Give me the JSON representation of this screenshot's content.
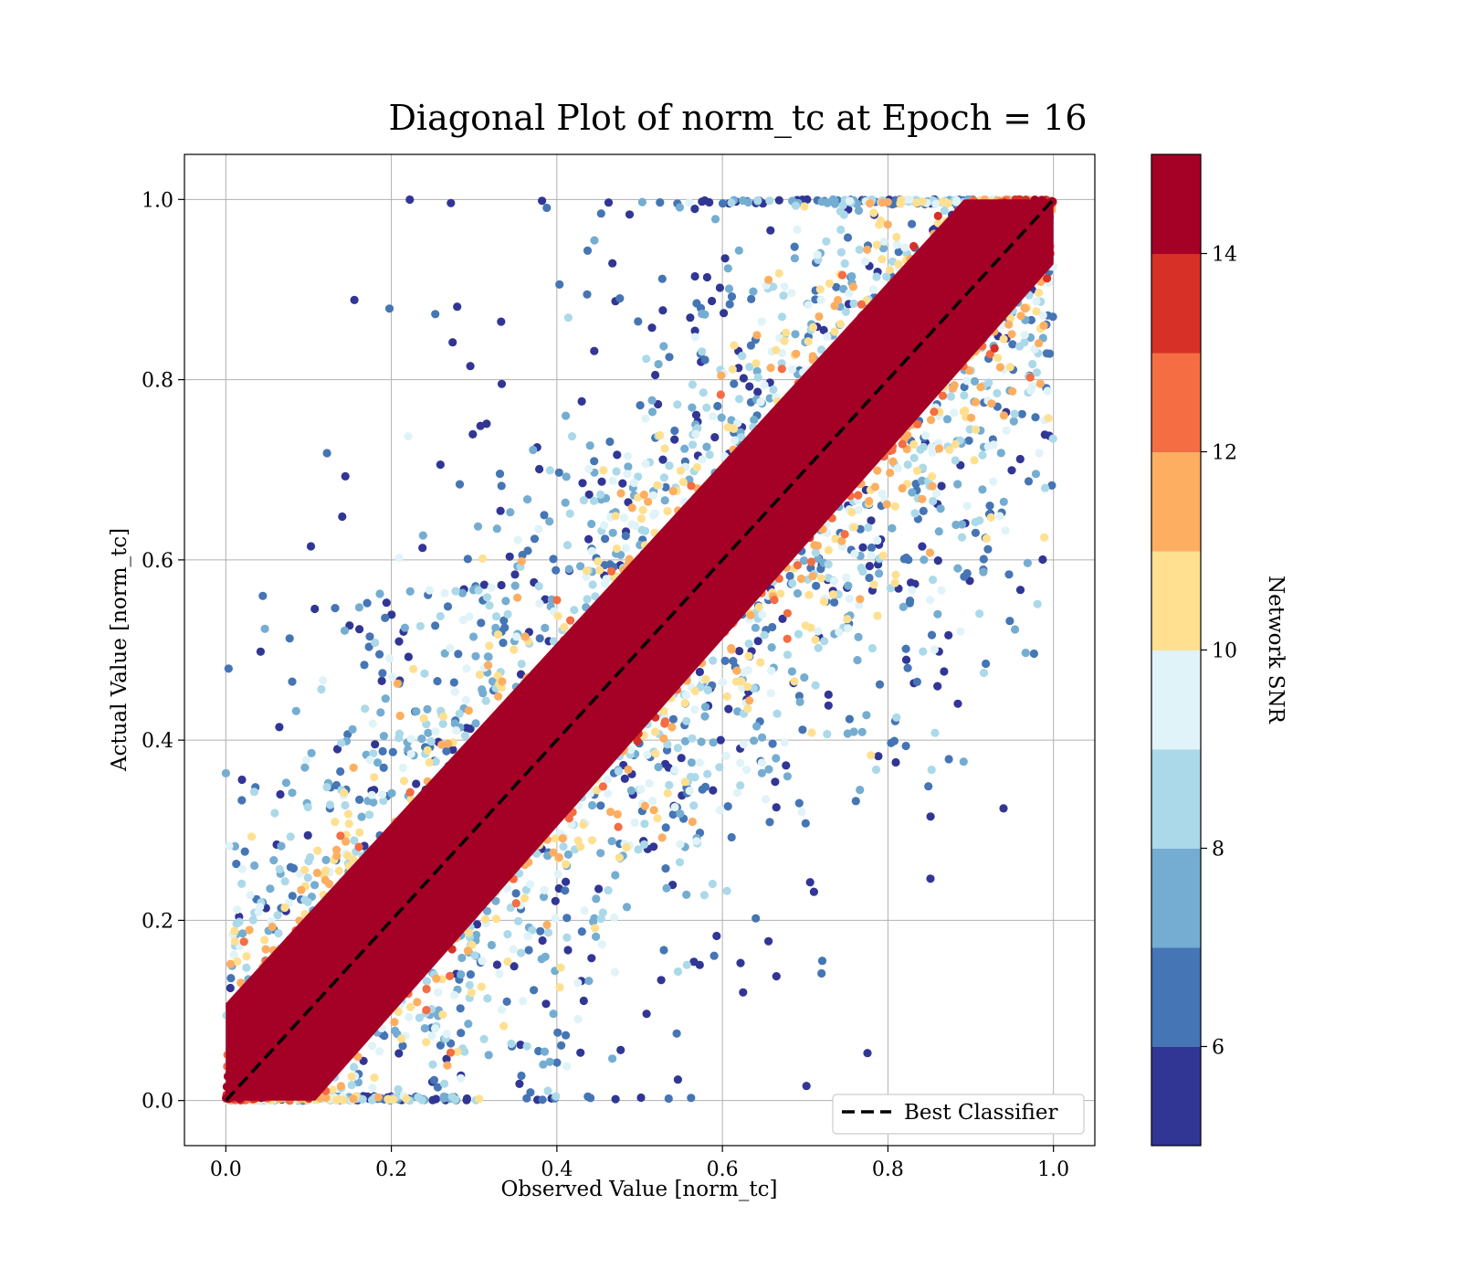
{
  "chart_data": {
    "type": "scatter",
    "title": "Diagonal Plot of norm_tc at Epoch = 16",
    "xlabel": "Observed Value [norm_tc]",
    "ylabel": "Actual Value [norm_tc]",
    "xlim": [
      -0.05,
      1.05
    ],
    "ylim": [
      -0.05,
      1.05
    ],
    "xticks": [
      "0.0",
      "0.2",
      "0.4",
      "0.6",
      "0.8",
      "1.0"
    ],
    "yticks": [
      "0.0",
      "0.2",
      "0.4",
      "0.6",
      "0.8",
      "1.0"
    ],
    "xtick_values": [
      0.0,
      0.2,
      0.4,
      0.6,
      0.8,
      1.0
    ],
    "ytick_values": [
      0.0,
      0.2,
      0.4,
      0.6,
      0.8,
      1.0
    ],
    "grid": true,
    "reference_line": {
      "name": "Best Classifier",
      "x": [
        0.0,
        1.0
      ],
      "y": [
        0.0,
        1.0
      ],
      "style": "dashed",
      "color": "#000000"
    },
    "legend": {
      "placement": "lower-right",
      "entries": [
        "Best Classifier"
      ]
    },
    "colorbar": {
      "label": "Network SNR",
      "range": [
        5,
        15
      ],
      "ticks": [
        "6",
        "8",
        "10",
        "12",
        "14"
      ],
      "tick_values": [
        6,
        8,
        10,
        12,
        14
      ],
      "colors": [
        "#313695",
        "#4575b4",
        "#74add1",
        "#abd9e9",
        "#e0f3f8",
        "#fee090",
        "#fdae61",
        "#f46d43",
        "#d73027",
        "#a50026"
      ]
    },
    "point_color_rule": "points near the diagonal have high Network SNR (>=14); scatter spreads away from the diagonal as SNR decreases",
    "high_snr_band_halfwidth": 0.09
  }
}
